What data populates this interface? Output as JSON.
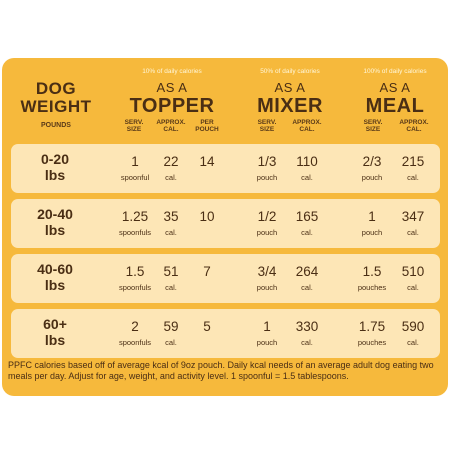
{
  "header": {
    "dog_weight": [
      "DOG",
      "WEIGHT"
    ],
    "pounds": "POUNDS",
    "groups": [
      {
        "note": "10% of daily calories",
        "as": "AS A",
        "title": "TOPPER",
        "cols": [
          [
            "SERV.",
            "SIZE"
          ],
          [
            "APPROX.",
            "CAL."
          ],
          [
            "PER",
            "POUCH"
          ]
        ]
      },
      {
        "note": "50% of daily calories",
        "as": "AS A",
        "title": "MIXER",
        "cols": [
          [
            "SERV.",
            "SIZE"
          ],
          [
            "APPROX.",
            "CAL."
          ]
        ]
      },
      {
        "note": "100% of daily calories",
        "as": "AS A",
        "title": "MEAL",
        "cols": [
          [
            "SERV.",
            "SIZE"
          ],
          [
            "APPROX.",
            "CAL."
          ]
        ]
      }
    ]
  },
  "rows": [
    {
      "weight": [
        "0-20",
        "lbs"
      ],
      "t_serv": "1",
      "t_serv_u": "spoonful",
      "t_cal": "22",
      "t_cal_u": "cal.",
      "t_pouch": "14",
      "m_serv": "1/3",
      "m_serv_u": "pouch",
      "m_cal": "110",
      "m_cal_u": "cal.",
      "e_serv": "2/3",
      "e_serv_u": "pouch",
      "e_cal": "215",
      "e_cal_u": "cal."
    },
    {
      "weight": [
        "20-40",
        "lbs"
      ],
      "t_serv": "1.25",
      "t_serv_u": "spoonfuls",
      "t_cal": "35",
      "t_cal_u": "cal.",
      "t_pouch": "10",
      "m_serv": "1/2",
      "m_serv_u": "pouch",
      "m_cal": "165",
      "m_cal_u": "cal.",
      "e_serv": "1",
      "e_serv_u": "pouch",
      "e_cal": "347",
      "e_cal_u": "cal."
    },
    {
      "weight": [
        "40-60",
        "lbs"
      ],
      "t_serv": "1.5",
      "t_serv_u": "spoonfuls",
      "t_cal": "51",
      "t_cal_u": "cal.",
      "t_pouch": "7",
      "m_serv": "3/4",
      "m_serv_u": "pouch",
      "m_cal": "264",
      "m_cal_u": "cal.",
      "e_serv": "1.5",
      "e_serv_u": "pouches",
      "e_cal": "510",
      "e_cal_u": "cal."
    },
    {
      "weight": [
        "60+",
        "lbs"
      ],
      "t_serv": "2",
      "t_serv_u": "spoonfuls",
      "t_cal": "59",
      "t_cal_u": "cal.",
      "t_pouch": "5",
      "m_serv": "1",
      "m_serv_u": "pouch",
      "m_cal": "330",
      "m_cal_u": "cal.",
      "e_serv": "1.75",
      "e_serv_u": "pouches",
      "e_cal": "590",
      "e_cal_u": "cal."
    }
  ],
  "footnote": "PPFC calories based off of average kcal of 9oz pouch. Daily kcal needs of an average adult dog eating two meals per day. Adjust for age, weight, and activity level. 1 spoonful = 1.5 tablespoons.",
  "colors": {
    "background": "#f6b93c",
    "row": "#fde6b6",
    "text": "#4a2e14"
  }
}
